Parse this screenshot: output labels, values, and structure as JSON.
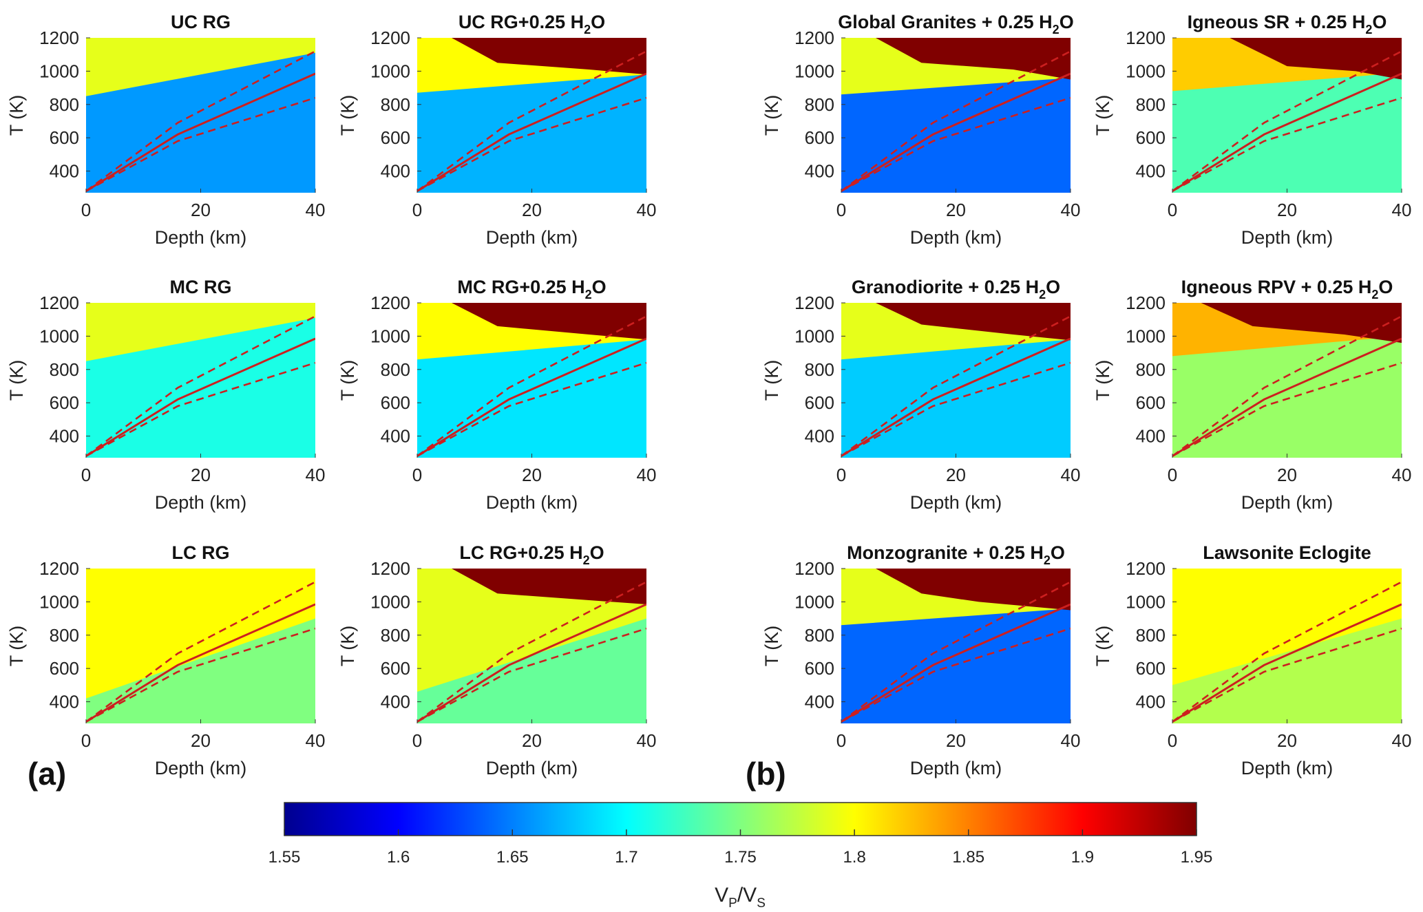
{
  "chart_data": {
    "type": "heatmap",
    "figure_labels": [
      "(a)",
      "(b)"
    ],
    "xlabel": "Depth (km)",
    "ylabel": "T (K)",
    "xlim": [
      0,
      40
    ],
    "ylim": [
      270,
      1200
    ],
    "xticks": [
      "0",
      "20",
      "40"
    ],
    "yticks": [
      "400",
      "600",
      "800",
      "1000",
      "1200"
    ],
    "colorbar": {
      "label_main": "V",
      "label_sub1": "P",
      "label_sep": "/V",
      "label_sub2": "S",
      "range": [
        1.55,
        1.95
      ],
      "ticks": [
        "1.55",
        "1.6",
        "1.65",
        "1.7",
        "1.75",
        "1.8",
        "1.85",
        "1.9",
        "1.95"
      ],
      "colors": [
        "#00008f",
        "#0000ff",
        "#0080ff",
        "#00ffff",
        "#80ff80",
        "#ffff00",
        "#ff8000",
        "#ff0000",
        "#800000"
      ]
    },
    "geotherms": {
      "solid": [
        [
          0,
          280
        ],
        [
          16,
          620
        ],
        [
          40,
          985
        ]
      ],
      "dashed_upper": [
        [
          0,
          280
        ],
        [
          16,
          690
        ],
        [
          40,
          1120
        ]
      ],
      "dashed_lower": [
        [
          0,
          280
        ],
        [
          16,
          580
        ],
        [
          40,
          840
        ]
      ],
      "color": "#cc1f1f"
    },
    "panels": [
      {
        "title": "UC RG",
        "title_sub": "",
        "title_tail": "",
        "upper": 1.79,
        "lower": 1.66,
        "transition": [
          [
            0,
            850
          ],
          [
            40,
            1110
          ]
        ],
        "melt": null
      },
      {
        "title": "UC RG+0.25 H",
        "title_sub": "2",
        "title_tail": "O",
        "upper": 1.8,
        "lower": 1.67,
        "transition": [
          [
            0,
            870
          ],
          [
            40,
            980
          ]
        ],
        "melt": [
          [
            6,
            1200
          ],
          [
            14,
            1050
          ],
          [
            30,
            1010
          ],
          [
            40,
            980
          ]
        ]
      },
      {
        "title": "Global Granites + 0.25 H",
        "title_sub": "2",
        "title_tail": "O",
        "upper": 1.79,
        "lower": 1.64,
        "transition": [
          [
            0,
            860
          ],
          [
            40,
            960
          ]
        ],
        "melt": [
          [
            6,
            1200
          ],
          [
            14,
            1050
          ],
          [
            30,
            1010
          ],
          [
            40,
            950
          ]
        ]
      },
      {
        "title": "Igneous SR + 0.25 H",
        "title_sub": "2",
        "title_tail": "O",
        "upper": 1.82,
        "lower": 1.73,
        "transition": [
          [
            0,
            880
          ],
          [
            40,
            990
          ]
        ],
        "melt": [
          [
            10,
            1200
          ],
          [
            20,
            1030
          ],
          [
            32,
            1000
          ],
          [
            40,
            950
          ]
        ]
      },
      {
        "title": "MC RG",
        "title_sub": "",
        "title_tail": "",
        "upper": 1.79,
        "lower": 1.71,
        "transition": [
          [
            0,
            850
          ],
          [
            40,
            1110
          ]
        ],
        "melt": null
      },
      {
        "title": "MC RG+0.25 H",
        "title_sub": "2",
        "title_tail": "O",
        "upper": 1.8,
        "lower": 1.69,
        "transition": [
          [
            0,
            860
          ],
          [
            40,
            980
          ]
        ],
        "melt": [
          [
            6,
            1200
          ],
          [
            14,
            1060
          ],
          [
            30,
            1010
          ],
          [
            40,
            980
          ]
        ]
      },
      {
        "title": "Granodiorite + 0.25 H",
        "title_sub": "2",
        "title_tail": "O",
        "upper": 1.79,
        "lower": 1.68,
        "transition": [
          [
            0,
            860
          ],
          [
            40,
            980
          ]
        ],
        "melt": [
          [
            6,
            1200
          ],
          [
            14,
            1070
          ],
          [
            30,
            1010
          ],
          [
            40,
            975
          ]
        ]
      },
      {
        "title": "Igneous RPV + 0.25 H",
        "title_sub": "2",
        "title_tail": "O",
        "upper": 1.83,
        "lower": 1.76,
        "transition": [
          [
            0,
            880
          ],
          [
            40,
            1000
          ]
        ],
        "melt": [
          [
            5,
            1200
          ],
          [
            14,
            1060
          ],
          [
            30,
            1010
          ],
          [
            40,
            960
          ]
        ]
      },
      {
        "title": "LC RG",
        "title_sub": "",
        "title_tail": "",
        "upper": 1.8,
        "lower": 1.75,
        "transition": [
          [
            0,
            420
          ],
          [
            40,
            900
          ]
        ],
        "melt": null
      },
      {
        "title": "LC RG+0.25 H",
        "title_sub": "2",
        "title_tail": "O",
        "upper": 1.79,
        "lower": 1.74,
        "transition": [
          [
            0,
            460
          ],
          [
            40,
            900
          ]
        ],
        "melt": [
          [
            6,
            1200
          ],
          [
            14,
            1050
          ],
          [
            30,
            1010
          ],
          [
            40,
            985
          ]
        ]
      },
      {
        "title": "Monzogranite + 0.25 H",
        "title_sub": "2",
        "title_tail": "O",
        "upper": 1.79,
        "lower": 1.64,
        "transition": [
          [
            0,
            860
          ],
          [
            40,
            960
          ]
        ],
        "melt": [
          [
            6,
            1200
          ],
          [
            14,
            1050
          ],
          [
            24,
            1000
          ],
          [
            40,
            950
          ]
        ]
      },
      {
        "title": "Lawsonite Eclogite",
        "title_sub": "",
        "title_tail": "",
        "upper": 1.8,
        "lower": 1.77,
        "transition": [
          [
            0,
            500
          ],
          [
            40,
            900
          ]
        ],
        "melt": null
      }
    ]
  }
}
